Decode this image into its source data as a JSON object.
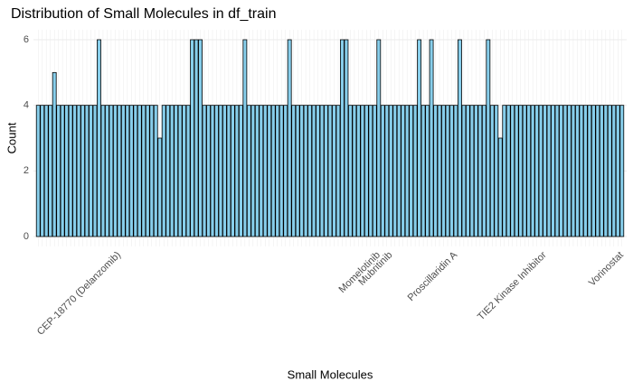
{
  "chart_data": {
    "type": "bar",
    "title": "Distribution of Small Molecules in df_train",
    "x_label": "Small Molecules",
    "y_label": "Count",
    "color": "#87ceeb",
    "ylim": [
      -0.3,
      6.3
    ],
    "yticks": [
      0,
      2,
      4,
      6
    ],
    "grid": true,
    "categories": [
      null,
      null,
      null,
      null,
      null,
      null,
      null,
      null,
      null,
      null,
      null,
      null,
      null,
      null,
      null,
      null,
      null,
      null,
      null,
      null,
      "CEP-18770 (Delanzomib)",
      null,
      null,
      null,
      null,
      null,
      null,
      null,
      null,
      null,
      null,
      null,
      null,
      null,
      null,
      null,
      null,
      null,
      null,
      null,
      null,
      null,
      null,
      null,
      null,
      null,
      null,
      null,
      null,
      null,
      null,
      null,
      null,
      null,
      null,
      null,
      null,
      null,
      null,
      null,
      null,
      null,
      null,
      null,
      null,
      null,
      null,
      null,
      null,
      null,
      null,
      null,
      null,
      null,
      null,
      null,
      null,
      null,
      null,
      null,
      null,
      null,
      null,
      null,
      "Momelotinib",
      null,
      null,
      "Mubritinib",
      null,
      null,
      null,
      null,
      null,
      null,
      null,
      null,
      null,
      null,
      null,
      null,
      null,
      null,
      null,
      "Proscillaridin A",
      null,
      null,
      null,
      null,
      null,
      null,
      null,
      null,
      null,
      null,
      null,
      null,
      null,
      null,
      null,
      null,
      null,
      null,
      null,
      null,
      null,
      "TIE2 Kinase Inhibitor",
      null,
      null,
      null,
      null,
      null,
      null,
      null,
      null,
      null,
      null,
      null,
      null,
      null,
      null,
      null,
      null,
      null,
      null,
      "Vorinostat"
    ],
    "values": [
      4,
      4,
      4,
      4,
      5,
      4,
      4,
      4,
      4,
      4,
      4,
      4,
      4,
      4,
      4,
      6,
      4,
      4,
      4,
      4,
      4,
      4,
      4,
      4,
      4,
      4,
      4,
      4,
      4,
      4,
      3,
      4,
      4,
      4,
      4,
      4,
      4,
      4,
      6,
      6,
      6,
      4,
      4,
      4,
      4,
      4,
      4,
      4,
      4,
      4,
      4,
      6,
      4,
      4,
      4,
      4,
      4,
      4,
      4,
      4,
      4,
      4,
      6,
      4,
      4,
      4,
      4,
      4,
      4,
      4,
      4,
      4,
      4,
      4,
      4,
      6,
      6,
      4,
      4,
      4,
      4,
      4,
      4,
      4,
      6,
      4,
      4,
      4,
      4,
      4,
      4,
      4,
      4,
      4,
      6,
      4,
      4,
      6,
      4,
      4,
      4,
      4,
      4,
      4,
      6,
      4,
      4,
      4,
      4,
      4,
      4,
      6,
      4,
      4,
      3,
      4,
      4,
      4,
      4,
      4,
      4,
      4,
      4,
      4,
      4,
      4,
      4,
      4,
      4,
      4,
      4,
      4,
      4,
      4,
      4,
      4,
      4,
      4,
      4,
      4,
      4,
      4,
      4,
      4,
      4
    ]
  }
}
